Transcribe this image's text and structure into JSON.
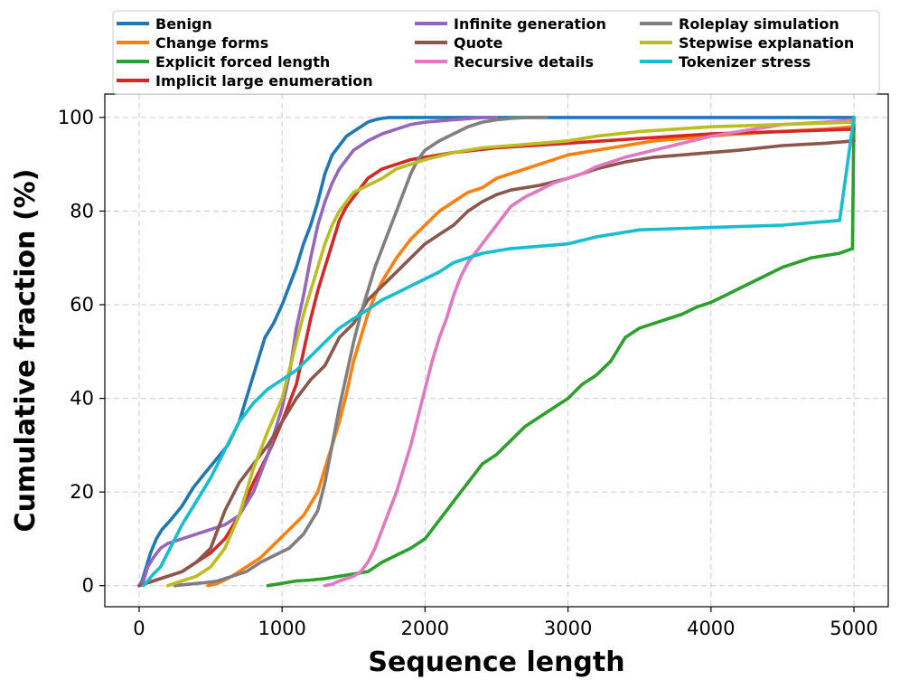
{
  "chart_data": {
    "type": "line",
    "title": "",
    "xlabel": "Sequence length",
    "ylabel": "Cumulative fraction (%)",
    "xlim": [
      -240,
      5240
    ],
    "ylim": [
      -4.5,
      105
    ],
    "xticks": [
      0,
      1000,
      2000,
      3000,
      4000,
      5000
    ],
    "xtick_labels": [
      "0",
      "1000",
      "2000",
      "3000",
      "4000",
      "5000"
    ],
    "yticks": [
      0,
      20,
      40,
      60,
      80,
      100
    ],
    "ytick_labels": [
      "0",
      "20",
      "40",
      "60",
      "80",
      "100"
    ],
    "grid": true,
    "legend_position": "top",
    "series": [
      {
        "name": "Benign",
        "color": "#1f77b4",
        "x": [
          0,
          20,
          50,
          80,
          120,
          160,
          220,
          300,
          380,
          460,
          540,
          620,
          700,
          760,
          820,
          880,
          940,
          1000,
          1050,
          1100,
          1150,
          1200,
          1250,
          1300,
          1350,
          1400,
          1450,
          1500,
          1550,
          1600,
          1650,
          1700,
          1750,
          1800,
          2000,
          2500,
          3000,
          4000,
          5000
        ],
        "y": [
          0,
          1,
          4,
          7,
          10,
          12,
          14,
          17,
          21,
          24,
          27,
          30,
          35,
          41,
          47,
          53,
          56,
          60,
          64,
          68,
          73,
          77,
          82,
          88,
          92,
          94,
          96,
          97,
          98,
          99,
          99.5,
          99.8,
          100,
          100,
          100,
          100,
          100,
          100,
          100
        ]
      },
      {
        "name": "Change forms",
        "color": "#ff7f0e",
        "x": [
          480,
          550,
          650,
          750,
          850,
          950,
          1050,
          1150,
          1250,
          1300,
          1350,
          1400,
          1450,
          1500,
          1550,
          1600,
          1650,
          1700,
          1800,
          1900,
          2000,
          2100,
          2200,
          2300,
          2400,
          2500,
          2600,
          2800,
          3000,
          3200,
          3400,
          3600,
          3800,
          4000,
          4200,
          4500,
          4800,
          5000
        ],
        "y": [
          0,
          0.5,
          2,
          4,
          6,
          9,
          12,
          15,
          20,
          25,
          30,
          35,
          41,
          48,
          53,
          58,
          62,
          65,
          70,
          74,
          77,
          80,
          82,
          84,
          85,
          87,
          88,
          90,
          92,
          93,
          94,
          95,
          95.5,
          96,
          96.5,
          97,
          97.5,
          98
        ]
      },
      {
        "name": "Explicit forced length",
        "color": "#2ca02c",
        "x": [
          900,
          1000,
          1100,
          1200,
          1300,
          1400,
          1500,
          1600,
          1700,
          1800,
          1900,
          2000,
          2100,
          2200,
          2300,
          2400,
          2500,
          2600,
          2700,
          2800,
          2900,
          3000,
          3100,
          3200,
          3300,
          3400,
          3500,
          3600,
          3700,
          3800,
          3900,
          4000,
          4100,
          4200,
          4300,
          4400,
          4500,
          4600,
          4700,
          4800,
          4900,
          4990,
          5000
        ],
        "y": [
          0,
          0.5,
          1,
          1.2,
          1.5,
          2,
          2.5,
          3,
          5,
          6.5,
          8,
          10,
          14,
          18,
          22,
          26,
          28,
          31,
          34,
          36,
          38,
          40,
          43,
          45,
          48,
          53,
          55,
          56,
          57,
          58,
          59.5,
          60.5,
          62,
          63.5,
          65,
          66.5,
          68,
          69,
          70,
          70.5,
          71,
          72,
          100
        ]
      },
      {
        "name": "Implicit large enumeration",
        "color": "#d62728",
        "x": [
          0,
          50,
          100,
          200,
          300,
          400,
          500,
          600,
          700,
          800,
          900,
          1000,
          1100,
          1150,
          1200,
          1250,
          1300,
          1350,
          1400,
          1450,
          1500,
          1550,
          1600,
          1650,
          1700,
          1800,
          1900,
          2000,
          2200,
          2500,
          3000,
          3500,
          4000,
          4500,
          5000
        ],
        "y": [
          0,
          0.5,
          1,
          2,
          3,
          5,
          7,
          10,
          15,
          22,
          28,
          35,
          43,
          50,
          57,
          63,
          68,
          73,
          78,
          81,
          83,
          85,
          87,
          88,
          89,
          90,
          91,
          91.5,
          92.5,
          93.5,
          94.5,
          95.5,
          96.5,
          97,
          97.5
        ]
      },
      {
        "name": "Infinite generation",
        "color": "#9467bd",
        "x": [
          0,
          30,
          60,
          100,
          150,
          200,
          300,
          400,
          500,
          600,
          700,
          800,
          900,
          1000,
          1050,
          1100,
          1150,
          1200,
          1250,
          1300,
          1350,
          1400,
          1450,
          1500,
          1550,
          1600,
          1700,
          1800,
          1900,
          2000,
          2200,
          2400,
          2500
        ],
        "y": [
          0,
          1,
          4,
          6,
          8,
          9,
          10,
          11,
          12,
          13,
          15,
          20,
          28,
          38,
          45,
          55,
          62,
          70,
          77,
          82,
          86,
          89,
          91,
          93,
          94,
          95,
          96.5,
          97.5,
          98.5,
          99,
          99.5,
          100,
          100
        ]
      },
      {
        "name": "Quote",
        "color": "#8c564b",
        "x": [
          0,
          50,
          100,
          200,
          300,
          400,
          500,
          550,
          600,
          700,
          800,
          900,
          1000,
          1100,
          1200,
          1300,
          1400,
          1500,
          1600,
          1700,
          1800,
          1900,
          2000,
          2100,
          2200,
          2300,
          2400,
          2500,
          2600,
          2800,
          3000,
          3200,
          3400,
          3600,
          3800,
          4000,
          4200,
          4500,
          4800,
          5000
        ],
        "y": [
          0,
          0.5,
          1,
          2,
          3,
          5,
          8,
          12,
          16,
          22,
          26,
          30,
          35,
          40,
          44,
          47,
          53,
          56,
          61,
          64,
          67,
          70,
          73,
          75,
          77,
          80,
          82,
          83.5,
          84.5,
          85.5,
          87,
          89,
          90.5,
          91.5,
          92,
          92.5,
          93,
          94,
          94.5,
          95
        ]
      },
      {
        "name": "Recursive details",
        "color": "#e377c2",
        "x": [
          1300,
          1350,
          1400,
          1450,
          1500,
          1550,
          1600,
          1650,
          1700,
          1750,
          1800,
          1850,
          1900,
          1950,
          2000,
          2050,
          2100,
          2150,
          2200,
          2250,
          2300,
          2350,
          2400,
          2450,
          2500,
          2550,
          2600,
          2700,
          2800,
          2900,
          3000,
          3100,
          3200,
          3300,
          3400,
          3600,
          3800,
          4000,
          4200,
          4500,
          4800,
          5000
        ],
        "y": [
          0,
          0.3,
          1,
          1.5,
          2,
          3,
          5,
          8,
          12,
          16,
          20,
          25,
          30,
          36,
          42,
          48,
          53,
          57,
          62,
          66,
          69,
          71,
          73,
          75,
          77,
          79,
          81,
          83,
          84.5,
          86,
          87,
          88,
          89.5,
          90.5,
          91.5,
          93,
          94.5,
          96,
          97,
          98.5,
          99,
          99.5
        ]
      },
      {
        "name": "Roleplay simulation",
        "color": "#7f7f7f",
        "x": [
          250,
          350,
          450,
          550,
          650,
          750,
          850,
          950,
          1050,
          1150,
          1250,
          1300,
          1350,
          1400,
          1450,
          1500,
          1550,
          1600,
          1650,
          1700,
          1750,
          1800,
          1850,
          1900,
          1950,
          2000,
          2100,
          2200,
          2300,
          2400,
          2500,
          2600,
          2700,
          2800,
          2850
        ],
        "y": [
          0,
          0.3,
          0.6,
          1,
          2,
          3,
          5,
          6.5,
          8,
          11,
          16,
          22,
          30,
          38,
          45,
          52,
          58,
          63,
          68,
          72,
          76,
          80,
          84,
          88,
          91,
          93,
          95,
          96.5,
          98,
          99,
          99.5,
          99.8,
          100,
          100,
          100
        ]
      },
      {
        "name": "Stepwise explanation",
        "color": "#bcbd22",
        "x": [
          200,
          250,
          300,
          400,
          500,
          600,
          700,
          800,
          900,
          1000,
          1050,
          1100,
          1150,
          1200,
          1250,
          1300,
          1350,
          1400,
          1450,
          1500,
          1600,
          1700,
          1800,
          1900,
          2000,
          2200,
          2400,
          2600,
          2800,
          3000,
          3200,
          3500,
          4000,
          4500,
          5000
        ],
        "y": [
          0,
          0.5,
          1,
          2,
          4,
          8,
          15,
          25,
          33,
          40,
          46,
          52,
          58,
          63,
          68,
          73,
          77,
          80,
          82,
          84,
          85.5,
          87,
          89,
          90,
          91,
          92.5,
          93.5,
          94,
          94.5,
          95,
          96,
          97,
          98,
          98.5,
          99
        ]
      },
      {
        "name": "Tokenizer stress",
        "color": "#17becf",
        "x": [
          30,
          60,
          100,
          150,
          200,
          250,
          300,
          400,
          500,
          600,
          700,
          800,
          900,
          1000,
          1100,
          1200,
          1300,
          1400,
          1500,
          1600,
          1700,
          1800,
          1900,
          2000,
          2100,
          2200,
          2300,
          2400,
          2600,
          2800,
          3000,
          3200,
          3500,
          4000,
          4500,
          4900,
          5000
        ],
        "y": [
          0,
          1,
          2.5,
          4,
          7,
          10,
          13,
          18,
          23,
          29,
          35,
          39,
          42,
          44,
          46,
          49,
          52,
          55,
          57,
          59,
          61,
          62.5,
          64,
          65.5,
          67,
          69,
          70,
          71,
          72,
          72.5,
          73,
          74.5,
          76,
          76.5,
          77,
          78,
          100
        ]
      }
    ]
  }
}
